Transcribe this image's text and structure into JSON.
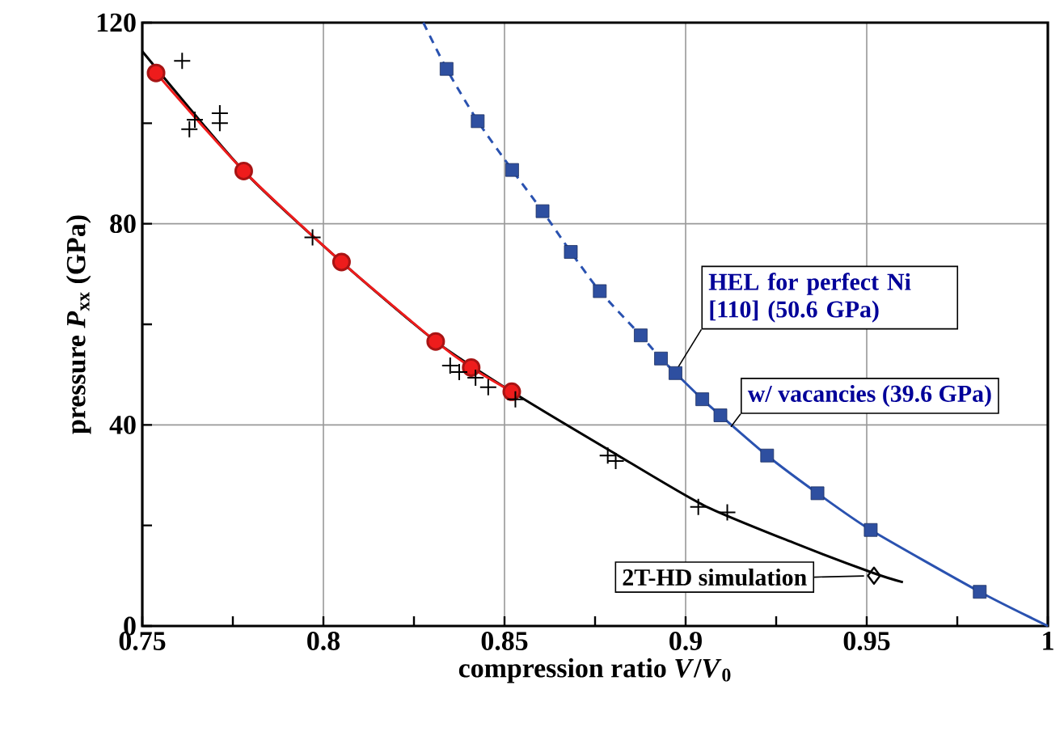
{
  "chart_data": {
    "type": "line",
    "xlabel": "compression ratio *V*/*V*$_{0}$",
    "ylabel": "pressure *P*$_{xx}$ (GPa)",
    "xlim": [
      0.75,
      1
    ],
    "ylim": [
      0,
      120
    ],
    "xticks": [
      0.75,
      {
        "value": 0.775,
        "label": null
      },
      0.8,
      {
        "value": 0.825,
        "label": null
      },
      0.85,
      {
        "value": 0.875,
        "label": null
      },
      0.9,
      {
        "value": 0.925,
        "label": null
      },
      0.95,
      {
        "value": 0.975,
        "label": null
      },
      1
    ],
    "yticks": [
      0,
      {
        "value": 20,
        "label": null
      },
      40,
      {
        "value": 60,
        "label": null
      },
      80,
      {
        "value": 100,
        "label": null
      },
      120
    ],
    "grid": true,
    "series": [
      {
        "color": "#000000",
        "marker": "none",
        "line_style": "solid",
        "x": [
          0.75,
          0.778,
          0.805,
          0.831,
          0.852,
          0.88,
          0.905,
          0.93,
          0.952,
          0.96
        ],
        "values": [
          114.3,
          90.5,
          72.4,
          56.6,
          46.6,
          34.5,
          24.0,
          16.5,
          10.5,
          8.7
        ]
      },
      {
        "color": "#ee1c1c",
        "marker": "circle",
        "line_style": "solid",
        "x": [
          0.7538,
          0.778,
          0.805,
          0.831,
          0.8408,
          0.852
        ],
        "values": [
          110.0,
          90.5,
          72.4,
          56.6,
          51.4,
          46.6
        ]
      },
      {
        "type": "scatter",
        "color": "#000000",
        "marker": "cross",
        "x": [
          0.761,
          0.7645,
          0.763,
          0.7714,
          0.7714,
          0.797,
          0.835,
          0.8375,
          0.842,
          0.8455,
          0.853,
          0.8785,
          0.8807,
          0.9035,
          0.9115
        ],
        "values": [
          112.4,
          100.7,
          98.8,
          102.0,
          100.0,
          77.3,
          51.8,
          50.5,
          49.4,
          47.5,
          45.1,
          33.9,
          32.8,
          23.7,
          22.6
        ]
      },
      {
        "type": "scatter",
        "color": "#000000",
        "marker": "diamond",
        "x": [
          0.952
        ],
        "values": [
          10.0
        ]
      },
      {
        "color": "#2a52b0",
        "marker": "none",
        "line_style": "dashed",
        "x": [
          0.8276,
          0.834,
          0.8426,
          0.8521,
          0.8605,
          0.8683,
          0.8763,
          0.8876,
          0.8932,
          0.8972
        ],
        "values": [
          120.0,
          110.8,
          100.4,
          90.7,
          82.5,
          74.4,
          66.6,
          57.8,
          53.2,
          50.3
        ]
      },
      {
        "color": "#2a52b0",
        "marker": "none",
        "line_style": "solid",
        "x": [
          0.8972,
          0.9046,
          0.9096,
          0.9225,
          0.9364,
          0.9511,
          0.9812,
          1.0
        ],
        "values": [
          50.3,
          45.1,
          41.9,
          33.9,
          26.4,
          19.1,
          6.8,
          0.0
        ]
      },
      {
        "type": "scatter",
        "color": "#2e4fa0",
        "marker": "square",
        "x": [
          0.834,
          0.8426,
          0.8521,
          0.8605,
          0.8683,
          0.8763,
          0.8876,
          0.8932,
          0.8972,
          0.9046,
          0.9096,
          0.9225,
          0.9364,
          0.9511,
          0.9812
        ],
        "values": [
          110.8,
          100.4,
          90.7,
          82.5,
          74.4,
          66.6,
          57.8,
          53.2,
          50.3,
          45.1,
          41.9,
          33.9,
          26.4,
          19.1,
          6.8
        ]
      }
    ],
    "annotations": [
      {
        "text": "HEL for perfect Ni [110] (50.6 GPa)",
        "x": 0.8972,
        "y": 50.6
      },
      {
        "text": "w/ vacancies (39.6 GPa)",
        "x": 0.9125,
        "y": 39.6
      },
      "2T-HD simulation"
    ]
  }
}
